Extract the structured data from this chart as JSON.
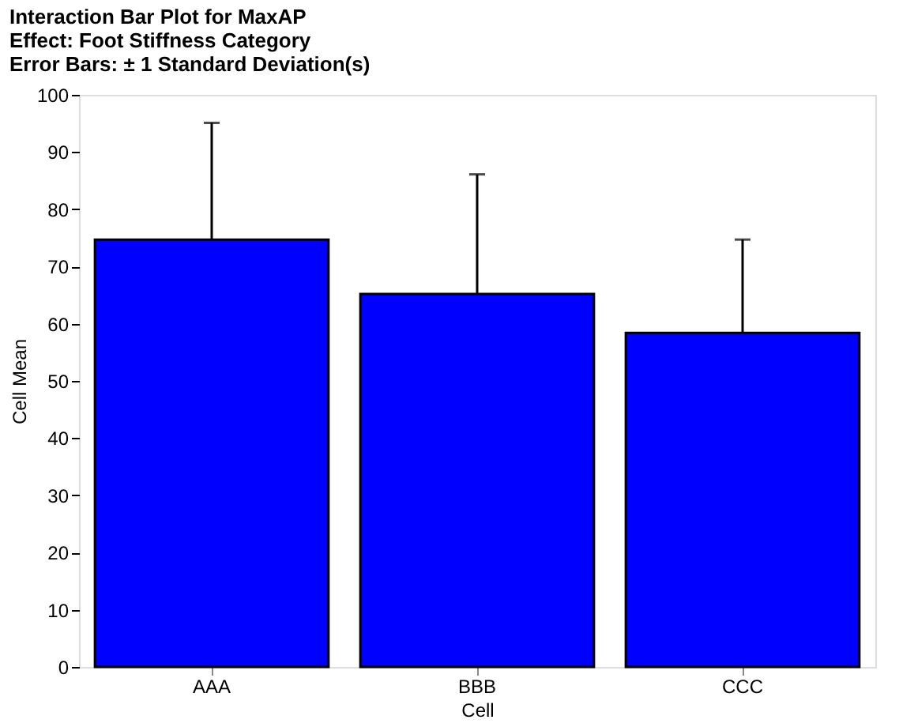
{
  "chart_data": {
    "type": "bar",
    "title": "Interaction Bar Plot for MaxAP",
    "subtitle": [
      "Effect: Foot Stiffness Category",
      "Error Bars: ± 1 Standard Deviation(s)"
    ],
    "xlabel": "Cell",
    "ylabel": "Cell Mean",
    "categories": [
      "AAA",
      "BBB",
      "CCC"
    ],
    "values": [
      74.7,
      65.2,
      58.4
    ],
    "errors": [
      20.4,
      20.9,
      16.3
    ],
    "color": "#0000ff",
    "ylim": [
      0,
      100
    ],
    "yticks": [
      0,
      10,
      20,
      30,
      40,
      50,
      60,
      70,
      80,
      90,
      100
    ],
    "grid": false
  }
}
